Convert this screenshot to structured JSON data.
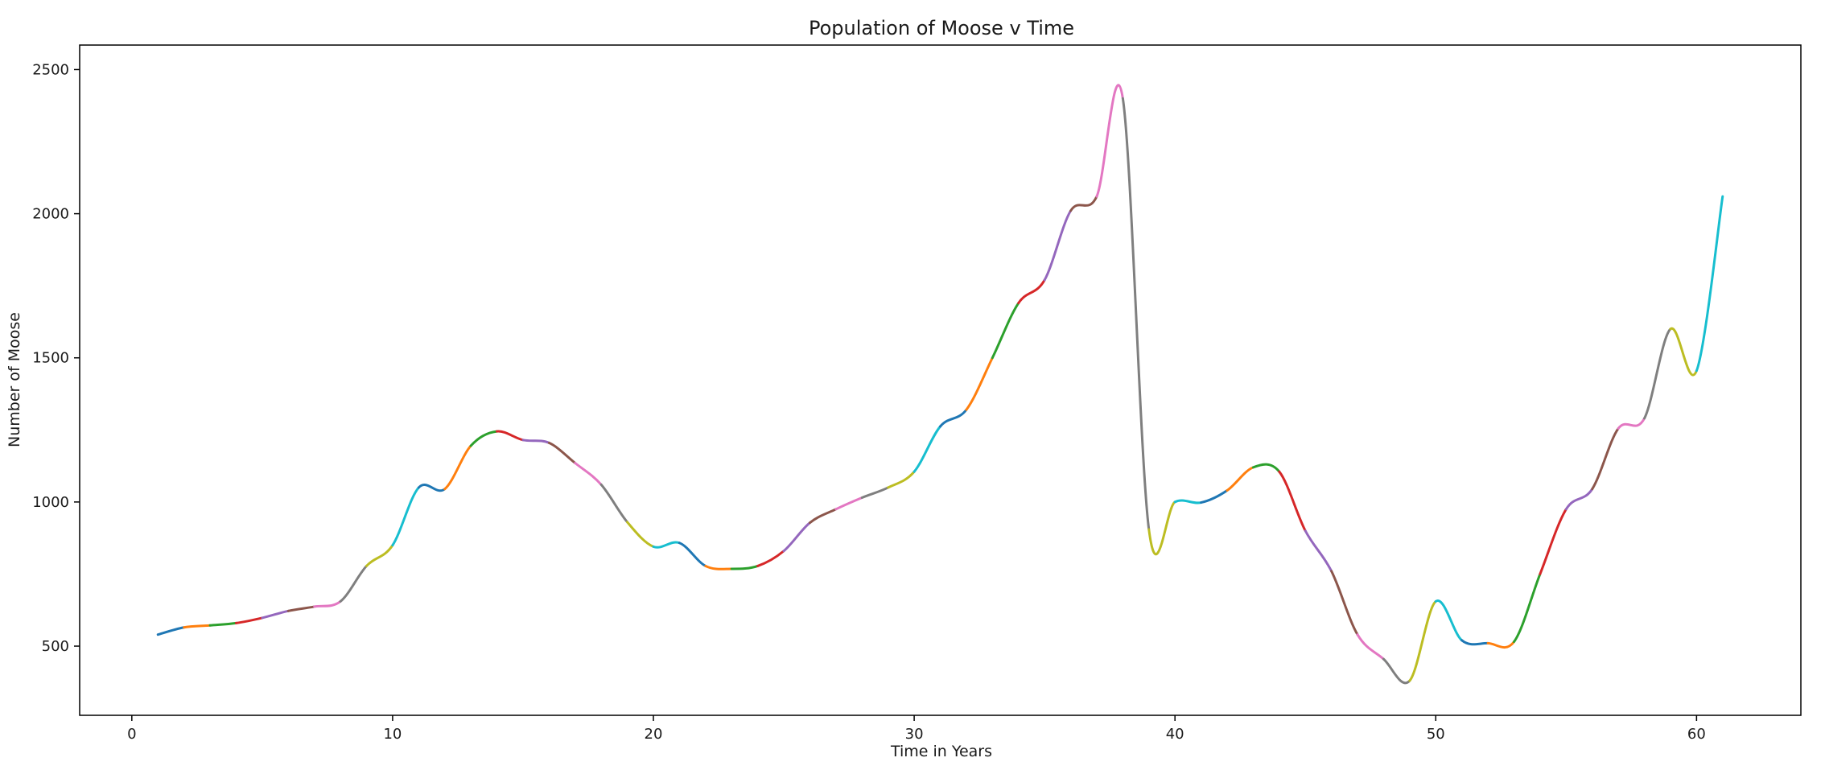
{
  "chart_data": {
    "type": "line",
    "title": "Population of Moose v Time",
    "xlabel": "Time in Years",
    "ylabel": "Number of Moose",
    "xlim": [
      -2,
      64
    ],
    "ylim": [
      260,
      2585
    ],
    "xticks": [
      0,
      10,
      20,
      30,
      40,
      50,
      60
    ],
    "yticks": [
      500,
      1000,
      1500,
      2000,
      2500
    ],
    "grid": false,
    "legend": false,
    "segment_colors": [
      "#1f77b4",
      "#ff7f0e",
      "#2ca02c",
      "#d62728",
      "#9467bd",
      "#8c564b",
      "#e377c2",
      "#7f7f7f",
      "#bcbd22",
      "#17becf"
    ],
    "x": [
      1,
      2,
      3,
      4,
      5,
      6,
      7,
      8,
      9,
      10,
      11,
      12,
      13,
      14,
      15,
      16,
      17,
      18,
      19,
      20,
      21,
      22,
      23,
      24,
      25,
      26,
      27,
      28,
      29,
      30,
      31,
      32,
      33,
      34,
      35,
      36,
      37,
      38,
      39,
      40,
      41,
      42,
      43,
      44,
      45,
      46,
      47,
      48,
      49,
      50,
      51,
      52,
      53,
      54,
      55,
      56,
      57,
      58,
      59,
      60,
      61
    ],
    "values": [
      540,
      565,
      572,
      580,
      598,
      622,
      637,
      655,
      778,
      850,
      1050,
      1045,
      1195,
      1245,
      1215,
      1205,
      1135,
      1060,
      930,
      845,
      858,
      778,
      768,
      778,
      830,
      928,
      975,
      1015,
      1050,
      1105,
      1262,
      1320,
      1500,
      1690,
      1770,
      2010,
      2060,
      2400,
      905,
      1000,
      998,
      1040,
      1120,
      1105,
      900,
      760,
      540,
      455,
      380,
      655,
      520,
      510,
      515,
      750,
      975,
      1045,
      1255,
      1290,
      1600,
      1455,
      2060
    ]
  }
}
